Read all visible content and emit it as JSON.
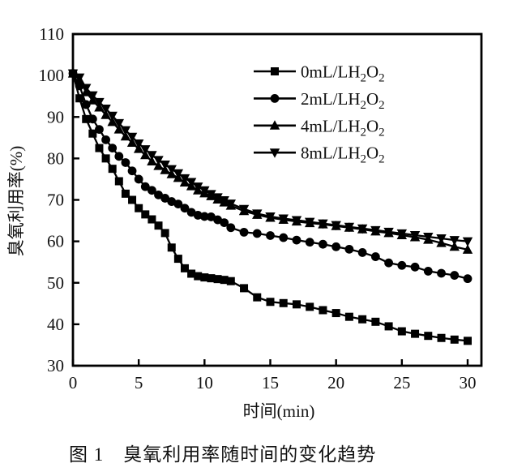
{
  "figure": {
    "caption": "图 1　臭氧利用率随时间的变化趋势"
  },
  "chart_data": {
    "type": "line",
    "title": "",
    "xlabel": "时间(min)",
    "ylabel": "臭氧利用率(%)",
    "xlim": [
      0,
      30
    ],
    "ylim": [
      30,
      110
    ],
    "xticks": [
      0,
      5,
      10,
      15,
      20,
      25,
      30
    ],
    "yticks": [
      30,
      40,
      50,
      60,
      70,
      80,
      90,
      100,
      110
    ],
    "grid": false,
    "legend_position": "inside-top-right",
    "color": "#000000",
    "background": "#ffffff",
    "x": [
      0,
      0.5,
      1,
      1.5,
      2,
      2.5,
      3,
      3.5,
      4,
      4.5,
      5,
      5.5,
      6,
      6.5,
      7,
      7.5,
      8,
      8.5,
      9,
      9.5,
      10,
      10.5,
      11,
      11.5,
      12,
      13,
      14,
      15,
      16,
      17,
      18,
      19,
      20,
      21,
      22,
      23,
      24,
      25,
      26,
      27,
      28,
      29,
      30
    ],
    "series": [
      {
        "name": "0mL/LH2O2",
        "marker": "square",
        "values": [
          100.5,
          94.5,
          89.5,
          86,
          82.5,
          80,
          77.5,
          74.5,
          71.5,
          70,
          68,
          66.5,
          65.3,
          63.8,
          62,
          58.5,
          55.8,
          53.5,
          52.2,
          51.6,
          51.3,
          51.1,
          50.9,
          50.7,
          50.4,
          48.7,
          46.5,
          45.4,
          45.1,
          44.8,
          44.2,
          43.4,
          42.7,
          41.8,
          41.2,
          40.6,
          39.5,
          38.3,
          37.7,
          37.2,
          36.7,
          36.3,
          36
        ]
      },
      {
        "name": "2mL/LH2O2",
        "marker": "circle",
        "values": [
          100.5,
          97.5,
          93,
          89.5,
          87,
          84.5,
          82.5,
          80.5,
          79,
          77,
          75,
          73.2,
          72.3,
          71.2,
          70.4,
          69.6,
          69,
          68,
          67,
          66.3,
          66,
          65.9,
          65.2,
          64.5,
          63.3,
          62.2,
          61.9,
          61.4,
          60.9,
          60.3,
          59.8,
          59.3,
          58.7,
          58.1,
          57.3,
          56.3,
          54.8,
          54.2,
          53.8,
          52.8,
          52.3,
          51.8,
          51
        ]
      },
      {
        "name": "4mL/LH2O2",
        "marker": "triangle-up",
        "values": [
          100.5,
          99,
          96,
          94,
          92.3,
          90.5,
          88.8,
          87,
          85.3,
          83.8,
          82.3,
          80.8,
          79.3,
          78.2,
          77.2,
          76.2,
          75.3,
          74.2,
          73.3,
          72.3,
          71.6,
          70.9,
          70.1,
          69.4,
          68.6,
          67.3,
          66.4,
          65.7,
          65.2,
          64.8,
          64.4,
          64.1,
          63.7,
          63.3,
          62.9,
          62.4,
          62,
          61.5,
          61,
          60.4,
          59.6,
          58.7,
          58
        ]
      },
      {
        "name": "8mL/LH2O2",
        "marker": "triangle-down",
        "values": [
          100.5,
          99.5,
          97,
          95.2,
          93.6,
          92,
          90.3,
          88.5,
          86.8,
          85.2,
          83.6,
          82.2,
          80.8,
          79.6,
          78.5,
          77.4,
          76.4,
          75.2,
          74.3,
          73.2,
          72.3,
          71.4,
          70.6,
          69.9,
          69.1,
          67.8,
          66.7,
          66,
          65.5,
          65.1,
          64.7,
          64.3,
          63.9,
          63.5,
          63.1,
          62.7,
          62.3,
          61.9,
          61.5,
          61.1,
          60.7,
          60.3,
          60
        ]
      }
    ]
  }
}
